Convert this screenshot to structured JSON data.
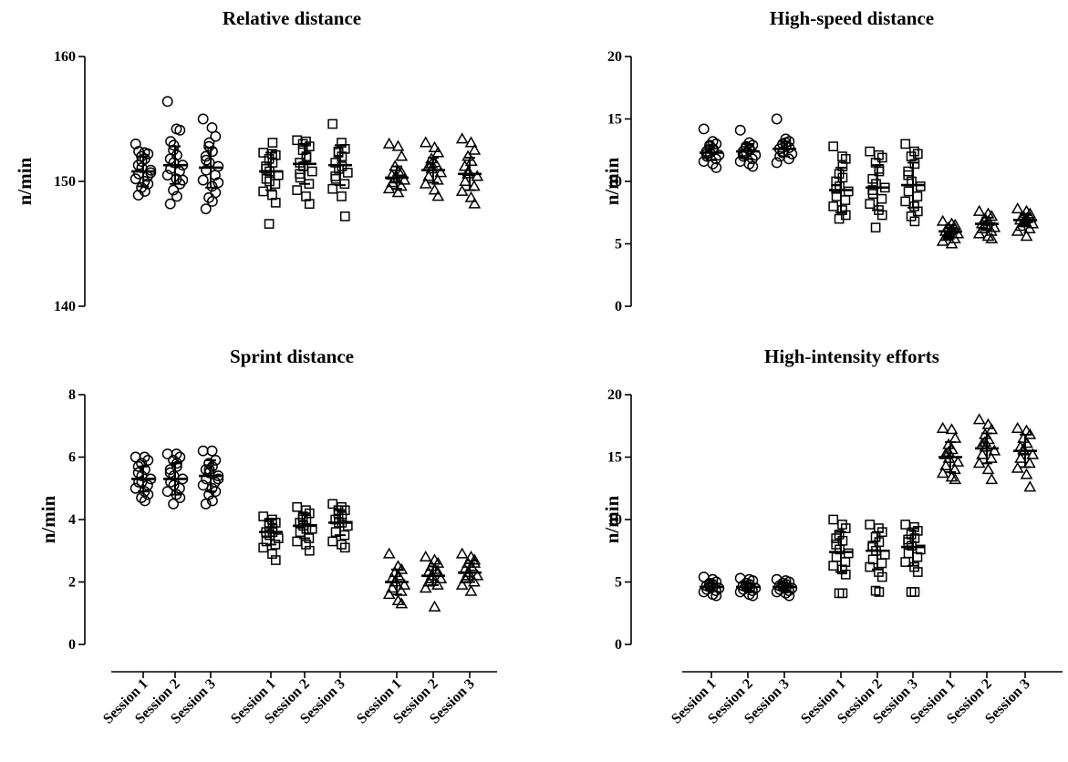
{
  "chart_data": [
    {
      "type": "scatter",
      "title": "Relative distance",
      "ylabel": "n/min",
      "ylim": [
        140,
        160
      ],
      "yticks": [
        "140",
        "150",
        "160"
      ],
      "groups": [
        {
          "marker": "circle",
          "sessions": [
            {
              "label": "Session 1",
              "mean": 150.8,
              "sd": 1.2,
              "values": [
                153.0,
                152.3,
                152.2,
                152.0,
                151.8,
                151.3,
                151.1,
                150.9,
                150.6,
                150.4,
                150.2,
                150.0,
                149.8,
                149.5,
                149.2,
                148.9,
                151.6,
                150.7,
                152.4
              ]
            },
            {
              "label": "Session 2",
              "mean": 151.3,
              "sd": 1.5,
              "values": [
                156.4,
                154.2,
                154.1,
                152.5,
                152.1,
                151.8,
                151.5,
                151.3,
                151.0,
                150.8,
                150.5,
                150.2,
                149.8,
                149.3,
                148.8,
                148.2,
                152.9,
                150.1,
                153.2
              ]
            },
            {
              "label": "Session 3",
              "mean": 151.1,
              "sd": 1.6,
              "values": [
                155.0,
                154.3,
                153.6,
                152.8,
                152.4,
                152.0,
                151.5,
                151.2,
                150.9,
                150.5,
                150.1,
                149.6,
                149.1,
                148.7,
                148.4,
                147.8,
                153.1,
                149.9,
                151.7
              ]
            }
          ]
        },
        {
          "marker": "square",
          "sessions": [
            {
              "label": "Session 1",
              "mean": 150.8,
              "sd": 1.5,
              "values": [
                152.3,
                152.2,
                152.1,
                151.8,
                151.5,
                151.0,
                150.8,
                150.5,
                150.2,
                149.8,
                149.2,
                148.9,
                148.3,
                146.6,
                153.1,
                151.2,
                150.0
              ]
            },
            {
              "label": "Session 2",
              "mean": 151.4,
              "sd": 1.6,
              "values": [
                153.3,
                153.2,
                152.8,
                152.5,
                152.0,
                151.5,
                151.2,
                150.8,
                150.3,
                149.8,
                149.3,
                148.8,
                148.2,
                153.0,
                151.9,
                150.6
              ]
            },
            {
              "label": "Session 3",
              "mean": 151.3,
              "sd": 1.6,
              "values": [
                154.6,
                153.1,
                152.6,
                152.3,
                152.0,
                151.5,
                151.0,
                150.7,
                150.2,
                149.8,
                149.4,
                148.8,
                147.2,
                152.4,
                151.2,
                150.4
              ]
            }
          ]
        },
        {
          "marker": "triangle",
          "sessions": [
            {
              "label": "Session 1",
              "mean": 150.3,
              "sd": 0.9,
              "values": [
                153.0,
                152.8,
                152.0,
                151.2,
                150.8,
                150.5,
                150.3,
                150.1,
                149.9,
                149.6,
                149.4,
                149.1,
                150.7,
                150.2
              ]
            },
            {
              "label": "Session 2",
              "mean": 150.9,
              "sd": 1.0,
              "values": [
                153.1,
                152.7,
                152.3,
                151.8,
                151.5,
                151.2,
                151.0,
                150.7,
                150.4,
                150.1,
                149.8,
                149.3,
                148.8,
                151.4
              ]
            },
            {
              "label": "Session 3",
              "mean": 150.6,
              "sd": 1.3,
              "values": [
                153.4,
                153.1,
                152.5,
                152.0,
                151.6,
                151.2,
                150.8,
                150.4,
                150.0,
                149.6,
                149.2,
                148.7,
                148.2,
                150.6
              ]
            }
          ]
        }
      ]
    },
    {
      "type": "scatter",
      "title": "High-speed distance",
      "ylabel": "n/min",
      "ylim": [
        0,
        20
      ],
      "yticks": [
        "0",
        "5",
        "10",
        "15",
        "20"
      ],
      "groups": [
        {
          "marker": "circle",
          "sessions": [
            {
              "label": "Session 1",
              "mean": 12.3,
              "sd": 0.6,
              "values": [
                14.2,
                13.2,
                13.0,
                12.8,
                12.6,
                12.4,
                12.3,
                12.1,
                12.0,
                11.8,
                11.6,
                11.4,
                11.1,
                12.9,
                12.5,
                12.2
              ]
            },
            {
              "label": "Session 2",
              "mean": 12.4,
              "sd": 0.6,
              "values": [
                14.1,
                13.1,
                12.9,
                12.7,
                12.6,
                12.4,
                12.3,
                12.1,
                12.0,
                11.8,
                11.6,
                11.4,
                11.2,
                12.8,
                12.5,
                12.2
              ]
            },
            {
              "label": "Session 3",
              "mean": 12.6,
              "sd": 0.6,
              "values": [
                15.0,
                13.4,
                13.2,
                13.0,
                12.8,
                12.6,
                12.4,
                12.2,
                12.0,
                11.8,
                11.5,
                13.1,
                12.7,
                12.3
              ]
            }
          ]
        },
        {
          "marker": "square",
          "sessions": [
            {
              "label": "Session 1",
              "mean": 9.3,
              "sd": 1.8,
              "values": [
                12.8,
                12.0,
                11.8,
                10.6,
                10.3,
                10.0,
                9.6,
                9.2,
                8.8,
                8.5,
                8.0,
                7.7,
                7.3,
                7.0,
                11.2,
                9.4
              ]
            },
            {
              "label": "Session 2",
              "mean": 9.5,
              "sd": 1.8,
              "values": [
                12.4,
                12.1,
                11.9,
                11.5,
                10.8,
                10.2,
                9.8,
                9.5,
                9.0,
                8.6,
                8.2,
                7.7,
                7.3,
                6.3,
                11.0,
                9.3
              ]
            },
            {
              "label": "Session 3",
              "mean": 9.7,
              "sd": 1.8,
              "values": [
                13.0,
                12.4,
                12.2,
                12.0,
                11.4,
                10.5,
                10.0,
                9.6,
                9.2,
                8.8,
                8.4,
                8.0,
                7.6,
                7.2,
                6.8,
                10.8
              ]
            }
          ]
        },
        {
          "marker": "triangle",
          "sessions": [
            {
              "label": "Session 1",
              "mean": 6.0,
              "sd": 0.5,
              "values": [
                6.8,
                6.6,
                6.5,
                6.3,
                6.1,
                6.0,
                5.9,
                5.8,
                5.6,
                5.4,
                5.2,
                5.0,
                6.2,
                5.7
              ]
            },
            {
              "label": "Session 2",
              "mean": 6.6,
              "sd": 0.5,
              "values": [
                7.6,
                7.4,
                7.2,
                7.0,
                6.8,
                6.6,
                6.5,
                6.3,
                6.2,
                6.0,
                5.8,
                5.6,
                5.4,
                6.9
              ]
            },
            {
              "label": "Session 3",
              "mean": 6.9,
              "sd": 0.5,
              "values": [
                7.8,
                7.6,
                7.4,
                7.2,
                7.0,
                6.9,
                6.8,
                6.6,
                6.4,
                6.2,
                6.0,
                5.6,
                7.1,
                6.7
              ]
            }
          ]
        }
      ]
    },
    {
      "type": "scatter",
      "title": "Sprint distance",
      "ylabel": "n/min",
      "ylim": [
        0,
        8
      ],
      "yticks": [
        "0",
        "2",
        "4",
        "6",
        "8"
      ],
      "groups": [
        {
          "marker": "circle",
          "sessions": [
            {
              "label": "Session 1",
              "mean": 5.3,
              "sd": 0.4,
              "values": [
                6.0,
                6.0,
                5.9,
                5.8,
                5.6,
                5.5,
                5.4,
                5.3,
                5.2,
                5.1,
                5.0,
                4.9,
                4.8,
                4.7,
                4.6,
                5.7,
                5.2
              ]
            },
            {
              "label": "Session 2",
              "mean": 5.3,
              "sd": 0.5,
              "values": [
                6.1,
                6.1,
                6.0,
                5.9,
                5.7,
                5.6,
                5.4,
                5.3,
                5.2,
                5.0,
                4.9,
                4.8,
                4.7,
                4.5,
                5.8,
                5.5,
                5.1
              ]
            },
            {
              "label": "Session 3",
              "mean": 5.4,
              "sd": 0.5,
              "values": [
                6.2,
                6.2,
                5.9,
                5.8,
                5.7,
                5.6,
                5.5,
                5.4,
                5.3,
                5.2,
                5.1,
                5.0,
                4.9,
                4.8,
                4.6,
                4.5,
                5.6,
                5.3
              ]
            }
          ]
        },
        {
          "marker": "square",
          "sessions": [
            {
              "label": "Session 1",
              "mean": 3.6,
              "sd": 0.4,
              "values": [
                4.1,
                4.0,
                3.9,
                3.8,
                3.7,
                3.6,
                3.5,
                3.4,
                3.3,
                3.2,
                3.1,
                2.9,
                2.7,
                3.9,
                3.6
              ]
            },
            {
              "label": "Session 2",
              "mean": 3.8,
              "sd": 0.4,
              "values": [
                4.4,
                4.3,
                4.2,
                4.1,
                4.0,
                3.9,
                3.8,
                3.7,
                3.6,
                3.4,
                3.3,
                3.2,
                3.0,
                4.0,
                3.7
              ]
            },
            {
              "label": "Session 3",
              "mean": 3.9,
              "sd": 0.4,
              "values": [
                4.5,
                4.4,
                4.3,
                4.2,
                4.1,
                4.0,
                3.9,
                3.8,
                3.6,
                3.5,
                3.3,
                3.2,
                3.1,
                4.3,
                3.9
              ]
            }
          ]
        },
        {
          "marker": "triangle",
          "sessions": [
            {
              "label": "Session 1",
              "mean": 2.0,
              "sd": 0.4,
              "values": [
                2.9,
                2.5,
                2.4,
                2.3,
                2.2,
                2.1,
                2.0,
                1.9,
                1.8,
                1.7,
                1.6,
                1.4,
                1.3,
                2.0
              ]
            },
            {
              "label": "Session 2",
              "mean": 2.2,
              "sd": 0.3,
              "values": [
                2.8,
                2.7,
                2.6,
                2.5,
                2.4,
                2.3,
                2.2,
                2.1,
                2.0,
                1.9,
                1.8,
                1.2,
                2.3,
                2.1
              ]
            },
            {
              "label": "Session 3",
              "mean": 2.3,
              "sd": 0.3,
              "values": [
                2.9,
                2.8,
                2.7,
                2.6,
                2.5,
                2.4,
                2.3,
                2.2,
                2.1,
                2.0,
                1.9,
                1.7,
                2.6,
                2.2
              ]
            }
          ]
        }
      ]
    },
    {
      "type": "scatter",
      "title": "High-intensity efforts",
      "ylabel": "n/min",
      "ylim": [
        0,
        20
      ],
      "yticks": [
        "0",
        "5",
        "10",
        "15",
        "20"
      ],
      "groups": [
        {
          "marker": "circle",
          "sessions": [
            {
              "label": "Session 1",
              "mean": 4.6,
              "sd": 0.3,
              "values": [
                5.4,
                5.2,
                5.0,
                4.9,
                4.8,
                4.7,
                4.6,
                4.5,
                4.4,
                4.3,
                4.2,
                4.0,
                3.9,
                4.8,
                4.6
              ]
            },
            {
              "label": "Session 2",
              "mean": 4.6,
              "sd": 0.3,
              "values": [
                5.3,
                5.2,
                5.1,
                4.9,
                4.8,
                4.7,
                4.6,
                4.5,
                4.4,
                4.3,
                4.2,
                4.0,
                3.9,
                4.7,
                4.5
              ]
            },
            {
              "label": "Session 3",
              "mean": 4.6,
              "sd": 0.3,
              "values": [
                5.2,
                5.1,
                5.0,
                4.9,
                4.8,
                4.7,
                4.6,
                4.5,
                4.4,
                4.3,
                4.2,
                4.1,
                3.9,
                4.7,
                4.5
              ]
            }
          ]
        },
        {
          "marker": "square",
          "sessions": [
            {
              "label": "Session 1",
              "mean": 7.4,
              "sd": 1.6,
              "values": [
                10.0,
                9.6,
                9.3,
                8.8,
                8.3,
                8.0,
                7.6,
                7.3,
                7.0,
                6.6,
                6.3,
                6.0,
                5.6,
                4.1,
                4.1,
                8.5
              ]
            },
            {
              "label": "Session 2",
              "mean": 7.5,
              "sd": 1.5,
              "values": [
                9.6,
                9.3,
                9.0,
                8.6,
                8.2,
                7.8,
                7.5,
                7.2,
                6.8,
                6.5,
                6.2,
                5.8,
                5.4,
                4.3,
                4.2,
                7.9
              ]
            },
            {
              "label": "Session 3",
              "mean": 7.8,
              "sd": 1.5,
              "values": [
                9.6,
                9.4,
                9.1,
                8.8,
                8.5,
                8.2,
                7.9,
                7.6,
                7.3,
                7.0,
                6.6,
                6.2,
                5.8,
                4.2,
                4.2,
                8.4
              ]
            }
          ]
        },
        {
          "marker": "triangle",
          "sessions": [
            {
              "label": "Session 1",
              "mean": 15.0,
              "sd": 1.2,
              "values": [
                17.3,
                17.2,
                16.5,
                16.0,
                15.6,
                15.2,
                14.9,
                14.6,
                14.3,
                14.0,
                13.7,
                13.4,
                13.2,
                15.4
              ]
            },
            {
              "label": "Session 2",
              "mean": 15.7,
              "sd": 1.2,
              "values": [
                18.0,
                17.6,
                17.2,
                16.8,
                16.4,
                16.0,
                15.8,
                15.5,
                15.2,
                14.9,
                14.5,
                14.0,
                13.2,
                16.2
              ]
            },
            {
              "label": "Session 3",
              "mean": 15.5,
              "sd": 1.3,
              "values": [
                17.3,
                17.1,
                16.8,
                16.5,
                16.1,
                15.8,
                15.5,
                15.2,
                14.9,
                14.5,
                14.1,
                13.6,
                12.6,
                15.6
              ]
            }
          ]
        }
      ]
    }
  ]
}
